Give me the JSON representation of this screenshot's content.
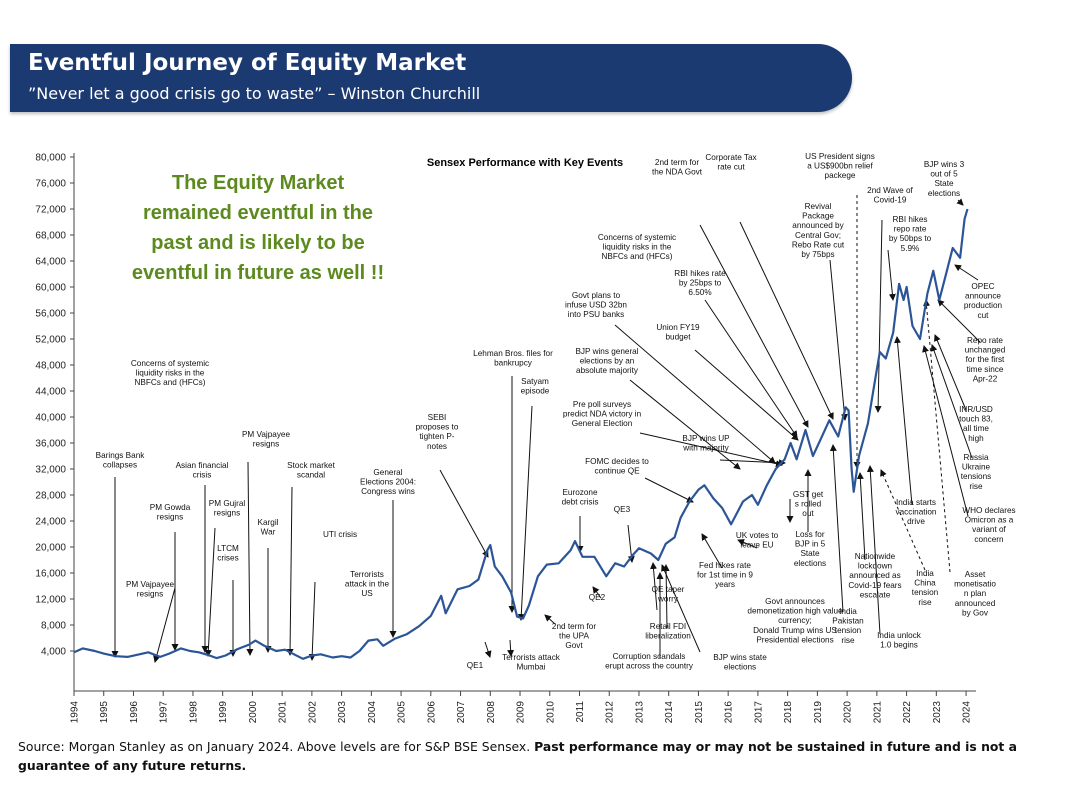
{
  "header": {
    "title": "Eventful Journey of Equity Market",
    "subtitle": "”Never let a good crisis go to waste” – Winston Churchill"
  },
  "footer": {
    "source": "Source: Morgan Stanley as on January 2024. Above levels are for S&P BSE Sensex.",
    "disclaimer": "Past performance may or may not be sustained in future and is not a guarantee of any future returns."
  },
  "colors": {
    "banner": "#1c3a72",
    "line": "#2c5597",
    "callout": "#5c8a1e",
    "arrow": "#111111"
  },
  "chart_data": {
    "type": "line",
    "title": "Sensex Performance with Key Events",
    "callout": [
      "The Equity Market",
      "remained eventful in the",
      "past and is likely to be",
      "eventful in future as well !!"
    ],
    "xlim": [
      1994,
      2024.2
    ],
    "ylim": [
      0,
      80000
    ],
    "yticks": [
      "80,000",
      "76,000",
      "72,000",
      "68,000",
      "64,000",
      "60,000",
      "56,000",
      "52,000",
      "48,000",
      "44,000",
      "40,000",
      "36,000",
      "32,000",
      "28,000",
      "24,000",
      "20,000",
      "16,000",
      "12,000",
      "8,000",
      "4,000"
    ],
    "xticks": [
      "1994",
      "1995",
      "1996",
      "1997",
      "1998",
      "1999",
      "2000",
      "2001",
      "2002",
      "2003",
      "2004",
      "2005",
      "2006",
      "2007",
      "2008",
      "2009",
      "2010",
      "2011",
      "2012",
      "2013",
      "2014",
      "2015",
      "2016",
      "2017",
      "2018",
      "2019",
      "2020",
      "2021",
      "2022",
      "2023",
      "2024"
    ],
    "grid": false,
    "series": [
      {
        "points": [
          [
            1994.0,
            3800
          ],
          [
            1994.3,
            4400
          ],
          [
            1994.7,
            4000
          ],
          [
            1995.0,
            3600
          ],
          [
            1995.4,
            3200
          ],
          [
            1995.8,
            3100
          ],
          [
            1996.2,
            3500
          ],
          [
            1996.5,
            3800
          ],
          [
            1996.9,
            3100
          ],
          [
            1997.2,
            3600
          ],
          [
            1997.6,
            4400
          ],
          [
            1997.9,
            4000
          ],
          [
            1998.2,
            3800
          ],
          [
            1998.5,
            3400
          ],
          [
            1998.8,
            2900
          ],
          [
            1999.1,
            3300
          ],
          [
            1999.5,
            4300
          ],
          [
            1999.9,
            5000
          ],
          [
            2000.1,
            5600
          ],
          [
            2000.4,
            4800
          ],
          [
            2000.8,
            4000
          ],
          [
            2001.1,
            4200
          ],
          [
            2001.4,
            3500
          ],
          [
            2001.7,
            2800
          ],
          [
            2002.0,
            3300
          ],
          [
            2002.3,
            3500
          ],
          [
            2002.7,
            3000
          ],
          [
            2003.0,
            3200
          ],
          [
            2003.3,
            3000
          ],
          [
            2003.6,
            4000
          ],
          [
            2003.9,
            5600
          ],
          [
            2004.2,
            5800
          ],
          [
            2004.4,
            4800
          ],
          [
            2004.8,
            5900
          ],
          [
            2005.2,
            6600
          ],
          [
            2005.6,
            7800
          ],
          [
            2006.0,
            9400
          ],
          [
            2006.35,
            12500
          ],
          [
            2006.5,
            9800
          ],
          [
            2006.9,
            13500
          ],
          [
            2007.3,
            14000
          ],
          [
            2007.6,
            15000
          ],
          [
            2007.9,
            19500
          ],
          [
            2008.0,
            20300
          ],
          [
            2008.15,
            17000
          ],
          [
            2008.4,
            15500
          ],
          [
            2008.7,
            13000
          ],
          [
            2008.9,
            9300
          ],
          [
            2009.1,
            9000
          ],
          [
            2009.3,
            11000
          ],
          [
            2009.6,
            15500
          ],
          [
            2009.9,
            17300
          ],
          [
            2010.3,
            17500
          ],
          [
            2010.7,
            19500
          ],
          [
            2010.85,
            20900
          ],
          [
            2011.1,
            18500
          ],
          [
            2011.5,
            18500
          ],
          [
            2011.9,
            15500
          ],
          [
            2012.2,
            17500
          ],
          [
            2012.5,
            17000
          ],
          [
            2012.8,
            18800
          ],
          [
            2013.0,
            19800
          ],
          [
            2013.4,
            19000
          ],
          [
            2013.65,
            18000
          ],
          [
            2013.9,
            20500
          ],
          [
            2014.2,
            21500
          ],
          [
            2014.4,
            24500
          ],
          [
            2014.7,
            27000
          ],
          [
            2015.0,
            28800
          ],
          [
            2015.2,
            29500
          ],
          [
            2015.5,
            27500
          ],
          [
            2015.8,
            26000
          ],
          [
            2016.1,
            23500
          ],
          [
            2016.5,
            27000
          ],
          [
            2016.8,
            28000
          ],
          [
            2017.0,
            26500
          ],
          [
            2017.3,
            29500
          ],
          [
            2017.6,
            32000
          ],
          [
            2017.9,
            33500
          ],
          [
            2018.1,
            36000
          ],
          [
            2018.3,
            33500
          ],
          [
            2018.6,
            38000
          ],
          [
            2018.85,
            34000
          ],
          [
            2019.1,
            36500
          ],
          [
            2019.4,
            39500
          ],
          [
            2019.7,
            37000
          ],
          [
            2019.95,
            41500
          ],
          [
            2020.05,
            41000
          ],
          [
            2020.15,
            32000
          ],
          [
            2020.22,
            28500
          ],
          [
            2020.4,
            34000
          ],
          [
            2020.7,
            39000
          ],
          [
            2020.95,
            46000
          ],
          [
            2021.1,
            50000
          ],
          [
            2021.3,
            49000
          ],
          [
            2021.55,
            53000
          ],
          [
            2021.75,
            60500
          ],
          [
            2021.9,
            58000
          ],
          [
            2022.0,
            60000
          ],
          [
            2022.2,
            54000
          ],
          [
            2022.45,
            52000
          ],
          [
            2022.7,
            59000
          ],
          [
            2022.9,
            62500
          ],
          [
            2023.1,
            58000
          ],
          [
            2023.3,
            61500
          ],
          [
            2023.55,
            66000
          ],
          [
            2023.8,
            64500
          ],
          [
            2023.95,
            70500
          ],
          [
            2024.05,
            72000
          ]
        ]
      }
    ],
    "annotations": [
      {
        "lines": [
          "Barings Bank",
          "collapses"
        ]
      },
      {
        "lines": [
          "PM Vajpayee",
          "resigns"
        ]
      },
      {
        "lines": [
          "PM Gowda",
          "resigns"
        ]
      },
      {
        "lines": [
          "Asian financial",
          "crisis"
        ]
      },
      {
        "lines": [
          "PM Gujral",
          "resigns"
        ]
      },
      {
        "lines": [
          "LTCM",
          "crises"
        ]
      },
      {
        "lines": [
          "PM Vajpayee",
          "resigns"
        ]
      },
      {
        "lines": [
          "Kargil",
          "War"
        ]
      },
      {
        "lines": [
          "Concerns of systemic",
          "liquidity risks in the",
          "NBFCs and  (HFCs)"
        ]
      },
      {
        "lines": [
          "Stock market",
          "scandal"
        ]
      },
      {
        "lines": [
          "UTI crisis"
        ]
      },
      {
        "lines": [
          "Terrorists",
          "attack in the",
          "US"
        ]
      },
      {
        "lines": [
          "General",
          "Elections 2004:",
          "Congress wins"
        ]
      },
      {
        "lines": [
          "SEBI",
          "proposes to",
          "tighten P-",
          "notes"
        ]
      },
      {
        "lines": [
          "Lehman Bros. files for",
          "bankrupcy"
        ]
      },
      {
        "lines": [
          "Satyam",
          "episode"
        ]
      },
      {
        "lines": [
          "QE1"
        ]
      },
      {
        "lines": [
          "Terrorists attack",
          "Mumbai"
        ]
      },
      {
        "lines": [
          "2nd term for",
          "the UPA",
          "Govt"
        ]
      },
      {
        "lines": [
          "BJP wins general",
          "elections by an",
          "absolute majority"
        ]
      },
      {
        "lines": [
          "Govt plans to",
          "infuse USD 32bn",
          "into PSU banks"
        ]
      },
      {
        "lines": [
          "Concerns of systemic",
          "liquidity risks in the",
          "NBFCs and  (HFCs)"
        ]
      },
      {
        "lines": [
          "Pre poll surveys",
          "predict NDA victory in",
          "General Election"
        ]
      },
      {
        "lines": [
          "Eurozone",
          "debt crisis"
        ]
      },
      {
        "lines": [
          "QE3"
        ]
      },
      {
        "lines": [
          "QE2"
        ]
      },
      {
        "lines": [
          "FOMC decides to",
          "continue QE"
        ]
      },
      {
        "lines": [
          "QE taper",
          "worry"
        ]
      },
      {
        "lines": [
          "Retail FDI",
          "liberalization"
        ]
      },
      {
        "lines": [
          "Corruption scandals",
          "erupt across the country"
        ]
      },
      {
        "lines": [
          "BJP wins state",
          "elections"
        ]
      },
      {
        "lines": [
          "BJP wins UP",
          "with majority"
        ]
      },
      {
        "lines": [
          "Union FY19",
          "budget"
        ]
      },
      {
        "lines": [
          "RBI hikes rate",
          "by 25bps to",
          "6.50%"
        ]
      },
      {
        "lines": [
          "2nd term for",
          "the NDA Govt"
        ]
      },
      {
        "lines": [
          "Corporate Tax",
          "rate cut"
        ]
      },
      {
        "lines": [
          "Fed hikes rate",
          "for 1st time in 9",
          "years"
        ]
      },
      {
        "lines": [
          "UK votes to",
          "leave EU"
        ]
      },
      {
        "lines": [
          "GST get",
          "s rolled",
          "out"
        ]
      },
      {
        "lines": [
          "Loss for",
          "BJP in 5",
          "State",
          "elections"
        ]
      },
      {
        "lines": [
          "Govt announces",
          "demonetization high value",
          "currency;",
          "Donald Trump wins US",
          "Presidential elections"
        ]
      },
      {
        "lines": [
          "India",
          "Pakistan",
          "tension",
          "rise"
        ]
      },
      {
        "lines": [
          "Revival",
          "Package",
          "announced by",
          "Central Gov;",
          "Rebo Rate cut",
          "by 75bps"
        ]
      },
      {
        "lines": [
          "US President signs",
          "a US$900bn relief",
          "packege"
        ]
      },
      {
        "lines": [
          "Nationwide",
          "lockdown",
          "announced as",
          "Covid-19 fears",
          "escalate"
        ]
      },
      {
        "lines": [
          "India unlock",
          "1.0 begins"
        ]
      },
      {
        "lines": [
          "India",
          "China",
          "tension",
          "rise"
        ]
      },
      {
        "lines": [
          "2nd Wave of",
          "Covid-19"
        ]
      },
      {
        "lines": [
          "RBI hikes",
          "repo rate",
          "by 50bps to",
          "5.9%"
        ]
      },
      {
        "lines": [
          "BJP wins 3",
          "out of 5",
          "State",
          "elections"
        ]
      },
      {
        "lines": [
          "India starts",
          "vaccination",
          "drive"
        ]
      },
      {
        "lines": [
          "Asset",
          "monetisatio",
          "n plan",
          "announced",
          "by Gov"
        ]
      },
      {
        "lines": [
          "WHO declares",
          "Omicron as a",
          "variant of",
          "concern"
        ]
      },
      {
        "lines": [
          "Russia",
          "Ukraine",
          "tensions",
          "rise"
        ]
      },
      {
        "lines": [
          "INR/USD",
          "touch 83,",
          "all time",
          "high"
        ]
      },
      {
        "lines": [
          "Repo rate",
          "unchanged",
          "for the first",
          "time since",
          "Apr-22"
        ]
      },
      {
        "lines": [
          "OPEC",
          "announce",
          "production",
          "cut"
        ]
      }
    ]
  }
}
